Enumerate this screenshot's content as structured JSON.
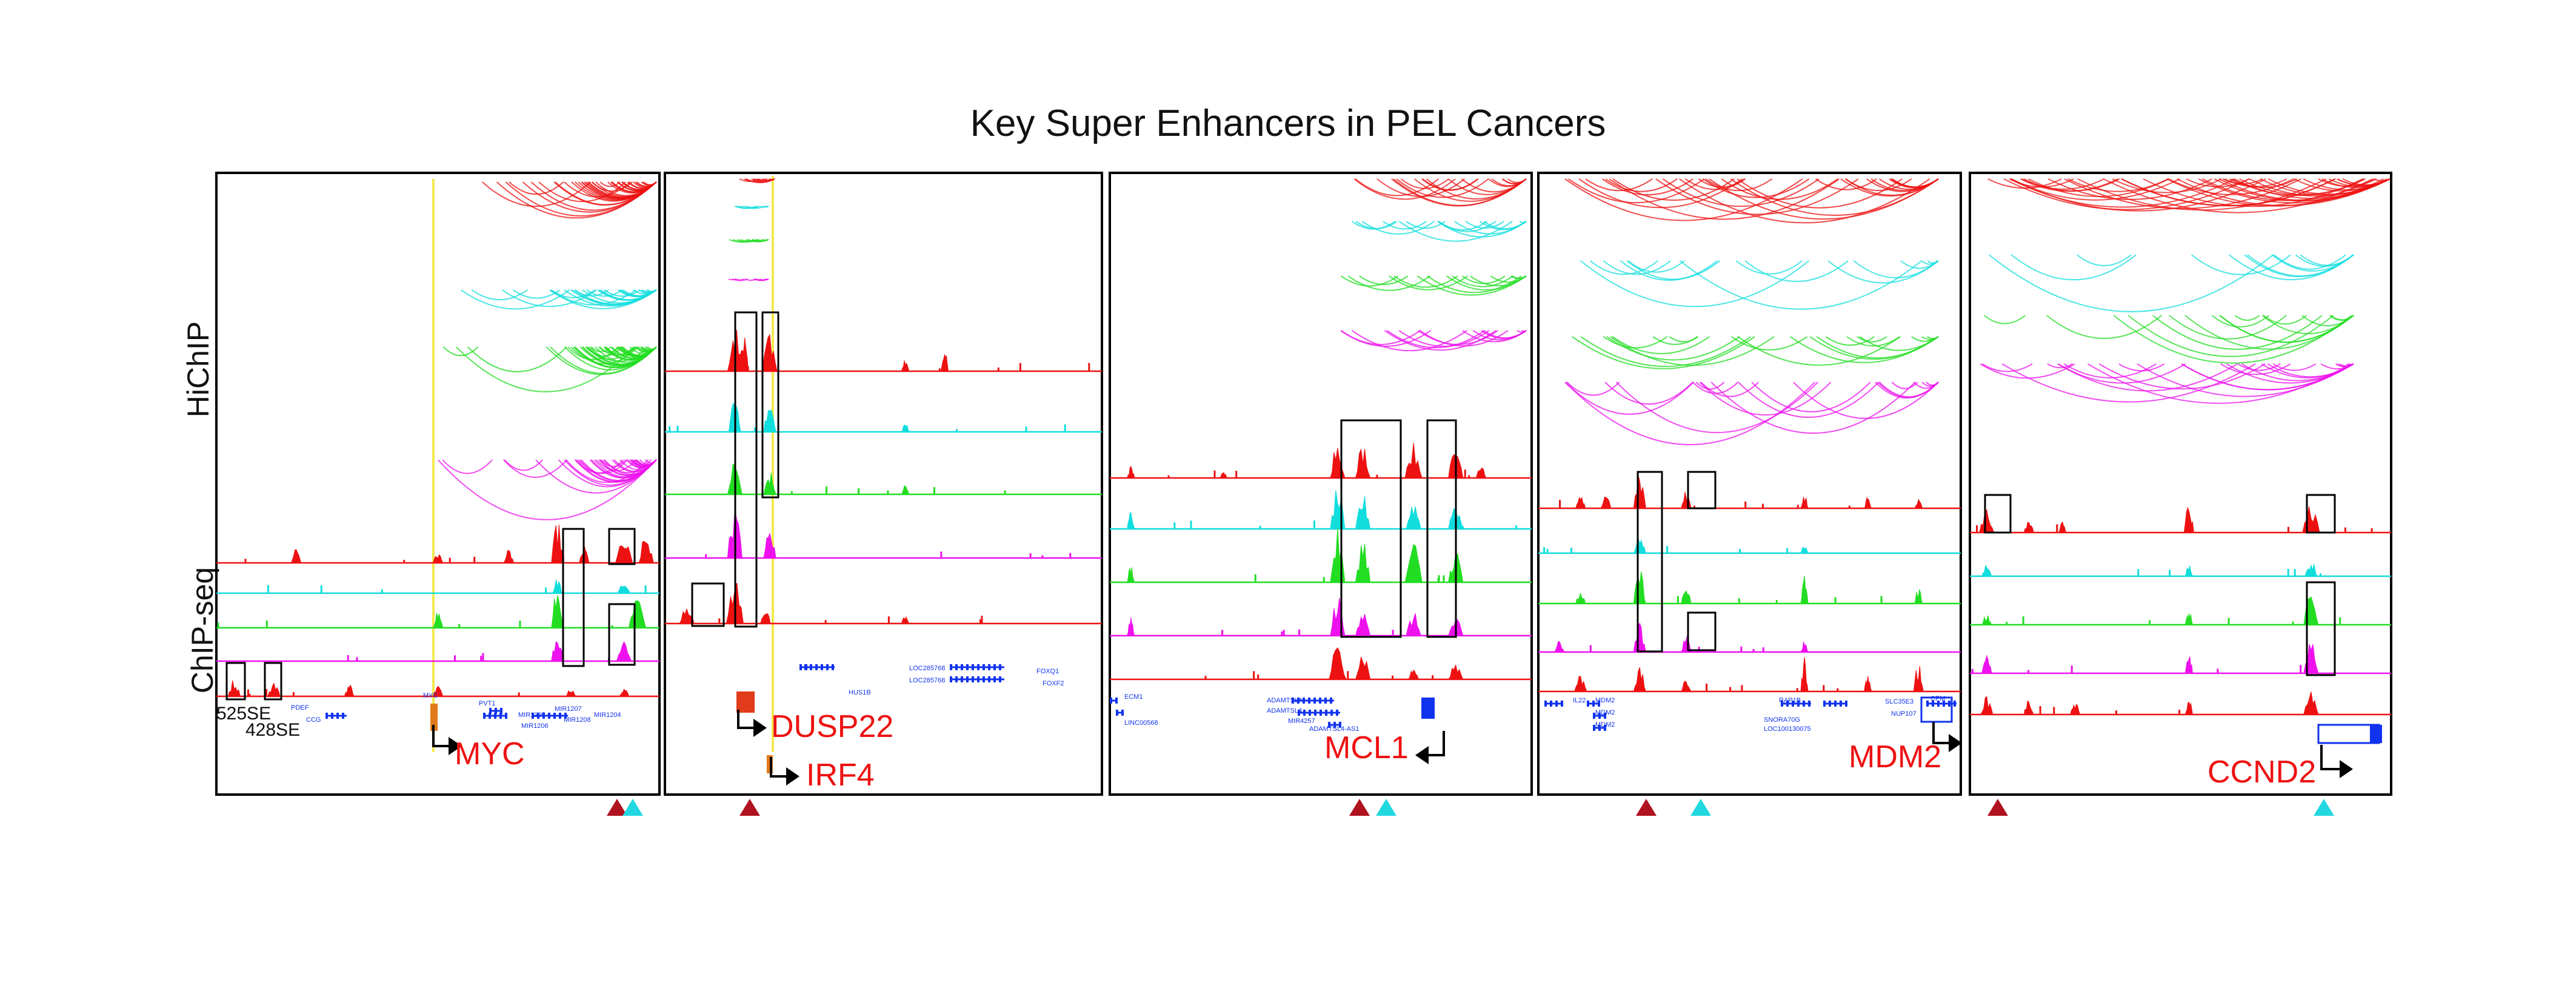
{
  "figure_title": "Key Super Enhancers in PEL Cancers",
  "row_labels": {
    "hichip": "HiChIP",
    "chipseq": "ChIP-seq"
  },
  "track_colors": {
    "red": "#ee1111",
    "cyan": "#11dddd",
    "green": "#22dd22",
    "magenta": "#ee11ee"
  },
  "marker_colors": {
    "dark_red": "#b0121f",
    "cyan": "#22d8e0",
    "gene_blue": "#1133ee",
    "label_red": "#ee1111"
  },
  "panels": [
    {
      "gene": "MYC",
      "se_labels": [
        "525SE",
        "428SE"
      ],
      "small_gene_labels": [
        "PDEF",
        "CCG",
        "MYC",
        "PVT1",
        "MIR1205",
        "MIR1206",
        "MIR1207",
        "MIR1208",
        "MIR1204"
      ],
      "markers": [
        "dark_red",
        "cyan"
      ]
    },
    {
      "gene": "DUSP22",
      "gene2": "IRF4",
      "small_gene_labels": [
        "HUS1B",
        "LOC285768",
        "LOC285768",
        "FOXQ1",
        "FOXF2"
      ],
      "markers": [
        "dark_red"
      ]
    },
    {
      "gene": "MCL1",
      "small_gene_labels": [
        "ECM1",
        "LINC00568",
        "ADAMTSL4",
        "ADAMTSL4",
        "MIR4257",
        "ADAMTSL4-AS1"
      ],
      "markers": [
        "dark_red",
        "cyan"
      ]
    },
    {
      "gene": "MDM2",
      "small_gene_labels": [
        "SLC35E3",
        "NUP107",
        "CPM",
        "MDM2",
        "MDM2",
        "MDM2",
        "RAP1B",
        "SNORA70G",
        "LOC100130075",
        "IL22"
      ],
      "markers": [
        "dark_red",
        "cyan"
      ]
    },
    {
      "gene": "CCND2",
      "small_gene_labels": [],
      "markers": [
        "dark_red",
        "cyan"
      ]
    }
  ]
}
